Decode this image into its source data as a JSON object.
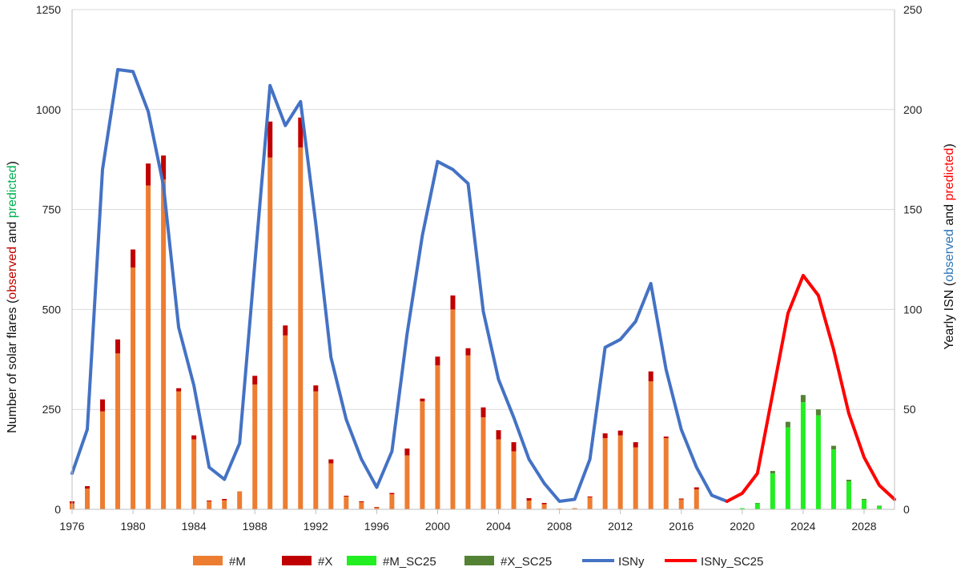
{
  "chart_data": {
    "type": "bar+line",
    "colors": {
      "M": "#ed7d31",
      "X": "#c00000",
      "M_SC25": "#22ee22",
      "X_SC25": "#548235",
      "ISNy": "#4472c4",
      "ISNy_SC25": "#ff0000",
      "observed_left": "#c00000",
      "predicted_left": "#00b050",
      "observed_right": "#2e75b6",
      "predicted_right": "#ff0000",
      "grid": "#d9d9d9"
    },
    "y_left": {
      "label_parts": [
        "Number of solar flares (",
        "observed",
        " and ",
        "predicted",
        ")"
      ],
      "ylim": [
        0,
        1250
      ],
      "ticks": [
        "0",
        "250",
        "500",
        "750",
        "1000",
        "1250"
      ]
    },
    "y_right": {
      "label_parts": [
        "Yearly ISN (",
        "observed",
        " and ",
        "predicted",
        ")"
      ],
      "ylim": [
        0,
        250
      ],
      "ticks": [
        "0",
        "50",
        "100",
        "150",
        "200",
        "250"
      ]
    },
    "x": {
      "xlim": [
        1976,
        2030
      ],
      "ticks": [
        "1976",
        "1980",
        "1984",
        "1988",
        "1992",
        "1996",
        "2000",
        "2004",
        "2008",
        "2012",
        "2016",
        "2020",
        "2024",
        "2028"
      ]
    },
    "legend": [
      "#M",
      "#X",
      "#M_SC25",
      "#X_SC25",
      "ISNy",
      "ISNy_SC25"
    ],
    "flares_observed": {
      "years": [
        1976,
        1977,
        1978,
        1979,
        1980,
        1981,
        1982,
        1983,
        1984,
        1985,
        1986,
        1987,
        1988,
        1989,
        1990,
        1991,
        1992,
        1993,
        1994,
        1995,
        1996,
        1997,
        1998,
        1999,
        2000,
        2001,
        2002,
        2003,
        2004,
        2005,
        2006,
        2007,
        2008,
        2009,
        2010,
        2011,
        2012,
        2013,
        2014,
        2015,
        2016,
        2017
      ],
      "M": [
        15,
        52,
        245,
        390,
        605,
        810,
        825,
        295,
        175,
        20,
        23,
        45,
        312,
        880,
        435,
        905,
        295,
        115,
        32,
        18,
        5,
        38,
        135,
        270,
        360,
        500,
        385,
        230,
        175,
        145,
        22,
        13,
        2,
        3,
        30,
        178,
        185,
        155,
        320,
        178,
        25,
        50
      ],
      "X": [
        5,
        6,
        30,
        35,
        45,
        55,
        60,
        8,
        10,
        2,
        3,
        0,
        22,
        90,
        25,
        75,
        15,
        10,
        2,
        2,
        1,
        3,
        17,
        7,
        22,
        35,
        18,
        25,
        23,
        23,
        6,
        3,
        0,
        0,
        2,
        12,
        12,
        13,
        25,
        4,
        2,
        5
      ]
    },
    "flares_predicted": {
      "years": [
        2020,
        2021,
        2022,
        2023,
        2024,
        2025,
        2026,
        2027,
        2028,
        2029
      ],
      "M_SC25": [
        3,
        15,
        90,
        205,
        268,
        235,
        150,
        70,
        24,
        8
      ],
      "X_SC25": [
        0,
        1,
        6,
        14,
        18,
        15,
        9,
        4,
        2,
        1
      ]
    },
    "isn_observed": {
      "years": [
        1976,
        1977,
        1978,
        1979,
        1980,
        1981,
        1982,
        1983,
        1984,
        1985,
        1986,
        1987,
        1988,
        1989,
        1990,
        1991,
        1992,
        1993,
        1994,
        1995,
        1996,
        1997,
        1998,
        1999,
        2000,
        2001,
        2002,
        2003,
        2004,
        2005,
        2006,
        2007,
        2008,
        2009,
        2010,
        2011,
        2012,
        2013,
        2014,
        2015,
        2016,
        2017,
        2018,
        2019
      ],
      "values": [
        18,
        40,
        170,
        220,
        219,
        199,
        162,
        91,
        62,
        21,
        15,
        33,
        123,
        212,
        192,
        204,
        143,
        76,
        45,
        25,
        11,
        29,
        88,
        137,
        174,
        170,
        163,
        99,
        65,
        46,
        25,
        13,
        4,
        5,
        25,
        81,
        85,
        94,
        113,
        70,
        40,
        21,
        7,
        4
      ]
    },
    "isn_predicted": {
      "years": [
        2019,
        2020,
        2021,
        2022,
        2023,
        2024,
        2025,
        2026,
        2027,
        2028,
        2029,
        2030
      ],
      "values": [
        4,
        8,
        18,
        58,
        98,
        117,
        107,
        80,
        48,
        26,
        12,
        5
      ]
    }
  }
}
